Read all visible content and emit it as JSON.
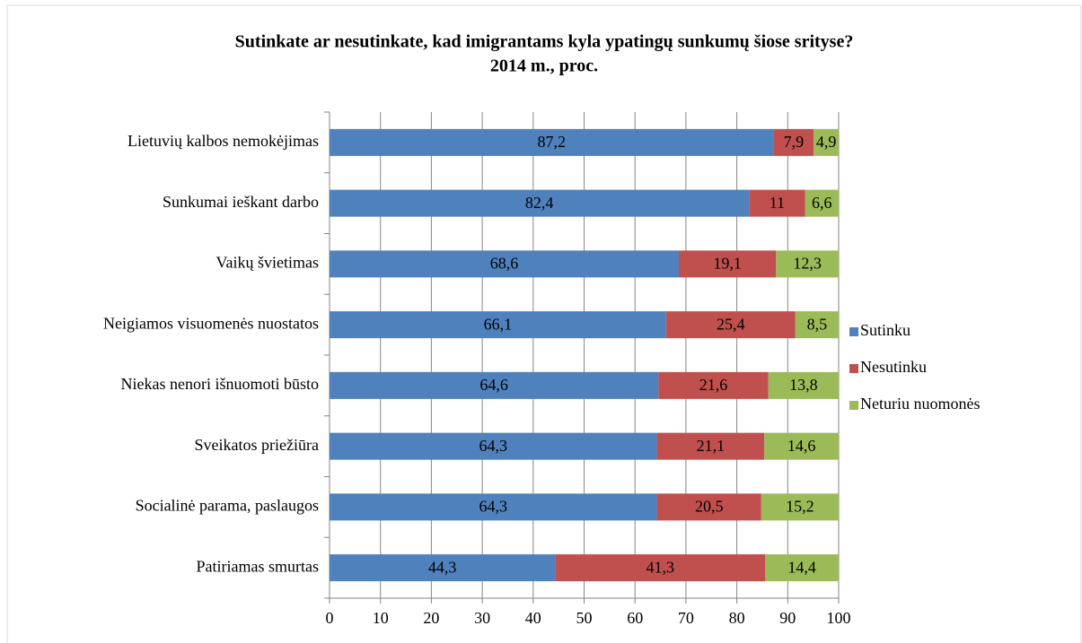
{
  "chart_data": {
    "type": "stacked-bar-horizontal",
    "title": [
      "Sutinkate ar nesutinkate, kad imigrantams kyla ypatingų sunkumų šiose srityse?",
      "2014 m., proc."
    ],
    "categories": [
      "Lietuvių kalbos nemokėjimas",
      "Sunkumai ieškant darbo",
      "Vaikų švietimas",
      "Neigiamos visuomenės nuostatos",
      "Niekas nenori išnuomoti būsto",
      "Sveikatos priežiūra",
      "Socialinė parama, paslaugos",
      "Patiriamas smurtas"
    ],
    "series": [
      {
        "name": "Sutinku",
        "color": "#4f81bd",
        "values": [
          87.2,
          82.4,
          68.6,
          66.1,
          64.6,
          64.3,
          64.3,
          44.3
        ],
        "value_labels": [
          "87,2",
          "82,4",
          "68,6",
          "66,1",
          "64,6",
          "64,3",
          "64,3",
          "44,3"
        ]
      },
      {
        "name": "Nesutinku",
        "color": "#c0504d",
        "values": [
          7.9,
          11,
          19.1,
          25.4,
          21.6,
          21.1,
          20.5,
          41.3
        ],
        "value_labels": [
          "7,9",
          "11",
          "19,1",
          "25,4",
          "21,6",
          "21,1",
          "20,5",
          "41,3"
        ]
      },
      {
        "name": "Neturiu nuomonės",
        "color": "#9bbb59",
        "values": [
          4.9,
          6.6,
          12.3,
          8.5,
          13.8,
          14.6,
          15.2,
          14.4
        ],
        "value_labels": [
          "4,9",
          "6,6",
          "12,3",
          "8,5",
          "13,8",
          "14,6",
          "15,2",
          "14,4"
        ]
      }
    ],
    "xlim": [
      0,
      100
    ],
    "xticks": [
      0,
      10,
      20,
      30,
      40,
      50,
      60,
      70,
      80,
      90,
      100
    ],
    "grid": true,
    "legend": "right"
  }
}
